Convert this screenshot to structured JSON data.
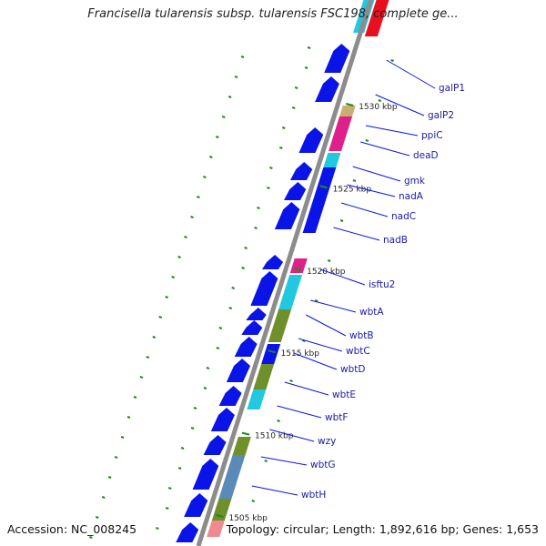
{
  "title": "Francisella tularensis subsp. tularensis FSC198, complete ge...",
  "footer": {
    "accession": "Accession: NC_008245",
    "info": "Topology: circular; Length: 1,892,616 bp; Genes: 1,653"
  },
  "colors": {
    "backbone": "#8c8c8c",
    "cds": "#0a14e6",
    "cyan": "#22c8e0",
    "olive": "#6f8f2a",
    "magenta": "#e0208a",
    "red": "#e8101e",
    "pink": "#f08a90",
    "orange": "#ff8c1a",
    "tan": "#c8b070",
    "steel": "#5a8ab8",
    "gc_skew": "#1e8a1e",
    "label": "#1a1aa6"
  },
  "kbp_ticks": [
    {
      "label": "1530 kbp",
      "kbp": 1530
    },
    {
      "label": "1525 kbp",
      "kbp": 1525
    },
    {
      "label": "1520 kbp",
      "kbp": 1520
    },
    {
      "label": "1515 kbp",
      "kbp": 1515
    },
    {
      "label": "1510 kbp",
      "kbp": 1510
    },
    {
      "label": "1505 kbp",
      "kbp": 1505
    }
  ],
  "gene_labels": [
    {
      "name": "galP1"
    },
    {
      "name": "galP2"
    },
    {
      "name": "ppiC"
    },
    {
      "name": "deaD"
    },
    {
      "name": "gmk"
    },
    {
      "name": "nadA"
    },
    {
      "name": "nadC"
    },
    {
      "name": "nadB"
    },
    {
      "name": "isftu2"
    },
    {
      "name": "wbtA"
    },
    {
      "name": "wbtB"
    },
    {
      "name": "wbtC"
    },
    {
      "name": "wbtD"
    },
    {
      "name": "wbtE"
    },
    {
      "name": "wbtF"
    },
    {
      "name": "wzy"
    },
    {
      "name": "wbtG"
    },
    {
      "name": "wbtH"
    }
  ]
}
